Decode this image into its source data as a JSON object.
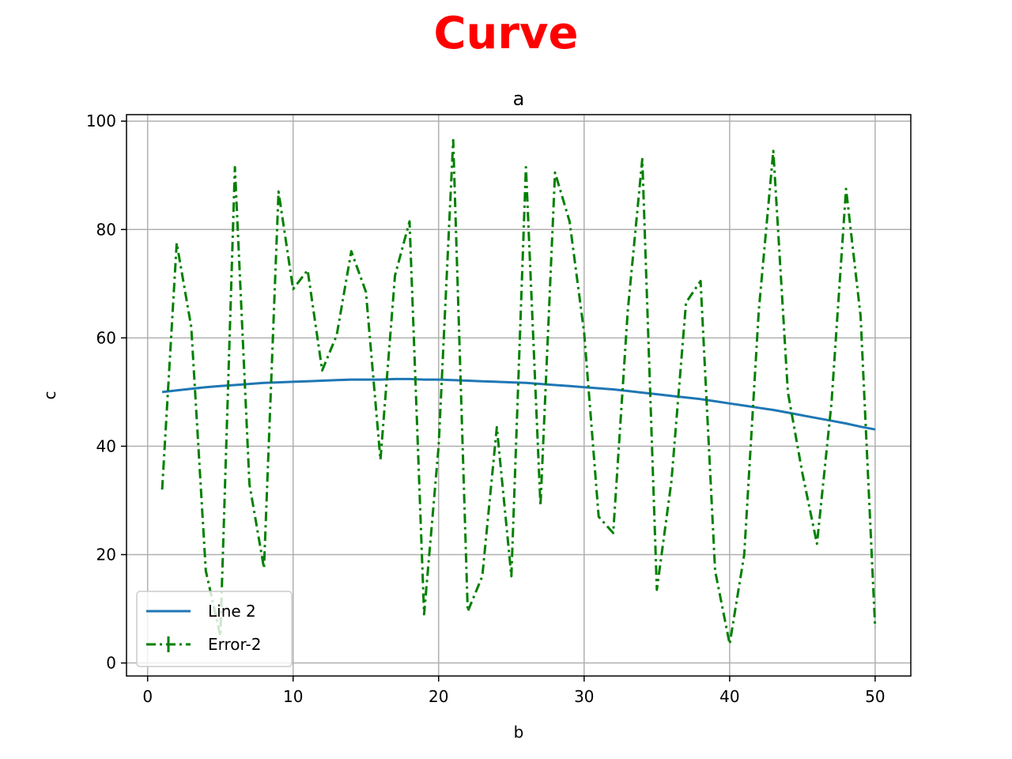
{
  "suptitle": "Curve",
  "chart_data": {
    "type": "line",
    "title": "a",
    "xlabel": "b",
    "ylabel": "c",
    "xlim": [
      -1.45,
      52.45
    ],
    "ylim": [
      -2.4,
      101.2
    ],
    "xticks": [
      0,
      10,
      20,
      30,
      40,
      50
    ],
    "yticks": [
      0,
      20,
      40,
      60,
      80,
      100
    ],
    "grid": true,
    "legend_position": "lower-left",
    "series": [
      {
        "name": "Line 2",
        "color": "#1f77b4",
        "style": "solid",
        "x": [
          1,
          2,
          3,
          4,
          5,
          6,
          7,
          8,
          9,
          10,
          11,
          12,
          13,
          14,
          15,
          16,
          17,
          18,
          19,
          20,
          21,
          22,
          23,
          24,
          25,
          26,
          27,
          28,
          29,
          30,
          31,
          32,
          33,
          34,
          35,
          36,
          37,
          38,
          39,
          40,
          41,
          42,
          43,
          44,
          45,
          46,
          47,
          48,
          49,
          50
        ],
        "values": [
          50.0,
          50.3,
          50.6,
          50.9,
          51.1,
          51.3,
          51.5,
          51.7,
          51.8,
          51.9,
          52.0,
          52.1,
          52.2,
          52.3,
          52.3,
          52.3,
          52.4,
          52.4,
          52.3,
          52.3,
          52.2,
          52.1,
          52.0,
          51.9,
          51.8,
          51.7,
          51.5,
          51.3,
          51.1,
          50.9,
          50.7,
          50.5,
          50.2,
          49.9,
          49.6,
          49.3,
          49.0,
          48.7,
          48.3,
          47.9,
          47.5,
          47.1,
          46.7,
          46.2,
          45.7,
          45.2,
          44.7,
          44.2,
          43.6,
          43.1
        ]
      },
      {
        "name": "Error-2",
        "color": "#008000",
        "style": "dashdot",
        "x": [
          1,
          2,
          3,
          4,
          5,
          6,
          7,
          8,
          9,
          10,
          11,
          12,
          13,
          14,
          15,
          16,
          17,
          18,
          19,
          20,
          21,
          22,
          23,
          24,
          25,
          26,
          27,
          28,
          29,
          30,
          31,
          32,
          33,
          34,
          35,
          36,
          37,
          38,
          39,
          40,
          41,
          42,
          43,
          44,
          45,
          46,
          47,
          48,
          49,
          50
        ],
        "values": [
          32,
          77.5,
          62,
          17,
          5,
          91.5,
          33,
          17.5,
          87,
          69,
          72.5,
          54,
          60.5,
          76,
          68.5,
          37.5,
          71.5,
          81.5,
          9,
          40,
          96.5,
          9.5,
          16,
          43.5,
          16,
          91.5,
          29,
          90.5,
          81.5,
          61,
          27,
          24,
          65,
          93,
          13.5,
          33.5,
          66.5,
          70.5,
          17,
          3.5,
          20,
          65,
          94.5,
          50,
          35,
          22,
          48,
          87.5,
          64,
          6.5
        ]
      }
    ]
  }
}
